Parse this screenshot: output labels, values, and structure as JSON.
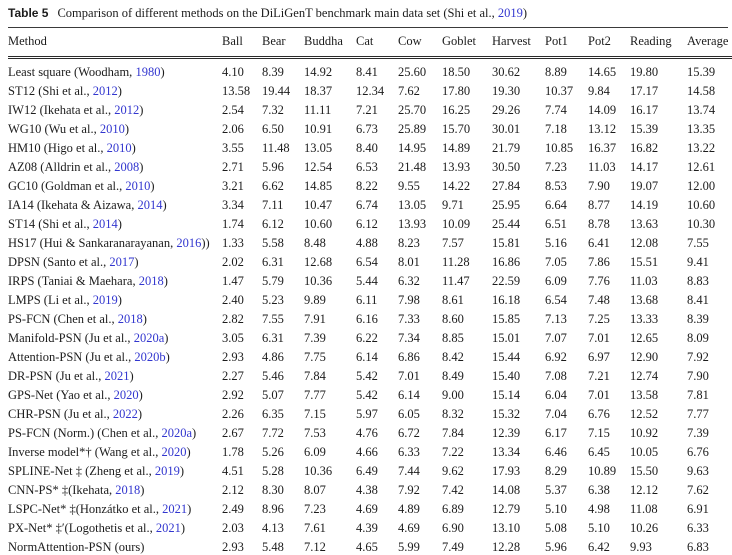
{
  "table": {
    "label": "Table 5",
    "caption_pre": "Comparison of different methods on the DiLiGenT benchmark main data set (Shi et al., ",
    "caption_year": "2019",
    "caption_post": ")",
    "columns": [
      "Method",
      "Ball",
      "Bear",
      "Buddha",
      "Cat",
      "Cow",
      "Goblet",
      "Harvest",
      "Pot1",
      "Pot2",
      "Reading",
      "Average"
    ],
    "rows": [
      {
        "method_pre": "Least square (Woodham, ",
        "year": "1980",
        "method_post": ")",
        "values": [
          "4.10",
          "8.39",
          "14.92",
          "8.41",
          "25.60",
          "18.50",
          "30.62",
          "8.89",
          "14.65",
          "19.80",
          "15.39"
        ]
      },
      {
        "method_pre": "ST12 (Shi et al., ",
        "year": "2012",
        "method_post": ")",
        "values": [
          "13.58",
          "19.44",
          "18.37",
          "12.34",
          "7.62",
          "17.80",
          "19.30",
          "10.37",
          "9.84",
          "17.17",
          "14.58"
        ]
      },
      {
        "method_pre": "IW12 (Ikehata et al., ",
        "year": "2012",
        "method_post": ")",
        "values": [
          "2.54",
          "7.32",
          "11.11",
          "7.21",
          "25.70",
          "16.25",
          "29.26",
          "7.74",
          "14.09",
          "16.17",
          "13.74"
        ]
      },
      {
        "method_pre": "WG10 (Wu et al., ",
        "year": "2010",
        "method_post": ")",
        "values": [
          "2.06",
          "6.50",
          "10.91",
          "6.73",
          "25.89",
          "15.70",
          "30.01",
          "7.18",
          "13.12",
          "15.39",
          "13.35"
        ]
      },
      {
        "method_pre": "HM10 (Higo et al., ",
        "year": "2010",
        "method_post": ")",
        "values": [
          "3.55",
          "11.48",
          "13.05",
          "8.40",
          "14.95",
          "14.89",
          "21.79",
          "10.85",
          "16.37",
          "16.82",
          "13.22"
        ]
      },
      {
        "method_pre": "AZ08 (Alldrin et al., ",
        "year": "2008",
        "method_post": ")",
        "values": [
          "2.71",
          "5.96",
          "12.54",
          "6.53",
          "21.48",
          "13.93",
          "30.50",
          "7.23",
          "11.03",
          "14.17",
          "12.61"
        ]
      },
      {
        "method_pre": "GC10 (Goldman et al., ",
        "year": "2010",
        "method_post": ")",
        "values": [
          "3.21",
          "6.62",
          "14.85",
          "8.22",
          "9.55",
          "14.22",
          "27.84",
          "8.53",
          "7.90",
          "19.07",
          "12.00"
        ]
      },
      {
        "method_pre": "IA14 (Ikehata & Aizawa, ",
        "year": "2014",
        "method_post": ")",
        "values": [
          "3.34",
          "7.11",
          "10.47",
          "6.74",
          "13.05",
          "9.71",
          "25.95",
          "6.64",
          "8.77",
          "14.19",
          "10.60"
        ]
      },
      {
        "method_pre": "ST14 (Shi et al., ",
        "year": "2014",
        "method_post": ")",
        "values": [
          "1.74",
          "6.12",
          "10.60",
          "6.12",
          "13.93",
          "10.09",
          "25.44",
          "6.51",
          "8.78",
          "13.63",
          "10.30"
        ]
      },
      {
        "method_pre": "HS17 (Hui & Sankaranarayanan, ",
        "year": "2016",
        "method_post": "))",
        "values": [
          "1.33",
          "5.58",
          "8.48",
          "4.88",
          "8.23",
          "7.57",
          "15.81",
          "5.16",
          "6.41",
          "12.08",
          "7.55"
        ]
      },
      {
        "method_pre": "DPSN (Santo et al., ",
        "year": "2017",
        "method_post": ")",
        "values": [
          "2.02",
          "6.31",
          "12.68",
          "6.54",
          "8.01",
          "11.28",
          "16.86",
          "7.05",
          "7.86",
          "15.51",
          "9.41"
        ]
      },
      {
        "method_pre": "IRPS (Taniai & Maehara, ",
        "year": "2018",
        "method_post": ")",
        "values": [
          "1.47",
          "5.79",
          "10.36",
          "5.44",
          "6.32",
          "11.47",
          "22.59",
          "6.09",
          "7.76",
          "11.03",
          "8.83"
        ]
      },
      {
        "method_pre": "LMPS (Li et al., ",
        "year": "2019",
        "method_post": ")",
        "values": [
          "2.40",
          "5.23",
          "9.89",
          "6.11",
          "7.98",
          "8.61",
          "16.18",
          "6.54",
          "7.48",
          "13.68",
          "8.41"
        ]
      },
      {
        "method_pre": "PS-FCN (Chen et al., ",
        "year": "2018",
        "method_post": ")",
        "values": [
          "2.82",
          "7.55",
          "7.91",
          "6.16",
          "7.33",
          "8.60",
          "15.85",
          "7.13",
          "7.25",
          "13.33",
          "8.39"
        ]
      },
      {
        "method_pre": "Manifold-PSN (Ju et al., ",
        "year": "2020a",
        "method_post": ")",
        "values": [
          "3.05",
          "6.31",
          "7.39",
          "6.22",
          "7.34",
          "8.85",
          "15.01",
          "7.07",
          "7.01",
          "12.65",
          "8.09"
        ]
      },
      {
        "method_pre": "Attention-PSN (Ju et al., ",
        "year": "2020b",
        "method_post": ")",
        "values": [
          "2.93",
          "4.86",
          "7.75",
          "6.14",
          "6.86",
          "8.42",
          "15.44",
          "6.92",
          "6.97",
          "12.90",
          "7.92"
        ]
      },
      {
        "method_pre": "DR-PSN (Ju et al., ",
        "year": "2021",
        "method_post": ")",
        "values": [
          "2.27",
          "5.46",
          "7.84",
          "5.42",
          "7.01",
          "8.49",
          "15.40",
          "7.08",
          "7.21",
          "12.74",
          "7.90"
        ]
      },
      {
        "method_pre": "GPS-Net (Yao et al., ",
        "year": "2020",
        "method_post": ")",
        "values": [
          "2.92",
          "5.07",
          "7.77",
          "5.42",
          "6.14",
          "9.00",
          "15.14",
          "6.04",
          "7.01",
          "13.58",
          "7.81"
        ]
      },
      {
        "method_pre": "CHR-PSN (Ju et al., ",
        "year": "2022",
        "method_post": ")",
        "values": [
          "2.26",
          "6.35",
          "7.15",
          "5.97",
          "6.05",
          "8.32",
          "15.32",
          "7.04",
          "6.76",
          "12.52",
          "7.77"
        ]
      },
      {
        "method_pre": "PS-FCN (Norm.) (Chen et al., ",
        "year": "2020a",
        "method_post": ")",
        "values": [
          "2.67",
          "7.72",
          "7.53",
          "4.76",
          "6.72",
          "7.84",
          "12.39",
          "6.17",
          "7.15",
          "10.92",
          "7.39"
        ]
      },
      {
        "method_pre": "Inverse model*† (Wang et al., ",
        "year": "2020",
        "method_post": ")",
        "values": [
          "1.78",
          "5.26",
          "6.09",
          "4.66",
          "6.33",
          "7.22",
          "13.34",
          "6.46",
          "6.45",
          "10.05",
          "6.76"
        ]
      },
      {
        "method_pre": "SPLINE-Net ‡ (Zheng et al., ",
        "year": "2019",
        "method_post": ")",
        "values": [
          "4.51",
          "5.28",
          "10.36",
          "6.49",
          "7.44",
          "9.62",
          "17.93",
          "8.29",
          "10.89",
          "15.50",
          "9.63"
        ]
      },
      {
        "method_pre": "CNN-PS* ‡(Ikehata, ",
        "year": "2018",
        "method_post": ")",
        "values": [
          "2.12",
          "8.30",
          "8.07",
          "4.38",
          "7.92",
          "7.42",
          "14.08",
          "5.37",
          "6.38",
          "12.12",
          "7.62"
        ]
      },
      {
        "method_pre": "LSPC-Net* ‡(Honzátko et al., ",
        "year": "2021",
        "method_post": ")",
        "values": [
          "2.49",
          "8.96",
          "7.23",
          "4.69",
          "4.89",
          "6.89",
          "12.79",
          "5.10",
          "4.98",
          "11.08",
          "6.91"
        ]
      },
      {
        "method_pre": "PX-Net* ‡′(Logothetis et al., ",
        "year": "2021",
        "method_post": ")",
        "values": [
          "2.03",
          "4.13",
          "7.61",
          "4.39",
          "4.69",
          "6.90",
          "13.10",
          "5.08",
          "5.10",
          "10.26",
          "6.33"
        ]
      },
      {
        "method_pre": "NormAttention-PSN (ours)",
        "year": "",
        "method_post": "",
        "values": [
          "2.93",
          "5.48",
          "7.12",
          "4.65",
          "5.99",
          "7.49",
          "12.28",
          "5.96",
          "6.42",
          "9.93",
          "6.83"
        ]
      }
    ]
  },
  "colors": {
    "link_blue": "#3236cf",
    "text": "#1c1c1c"
  }
}
